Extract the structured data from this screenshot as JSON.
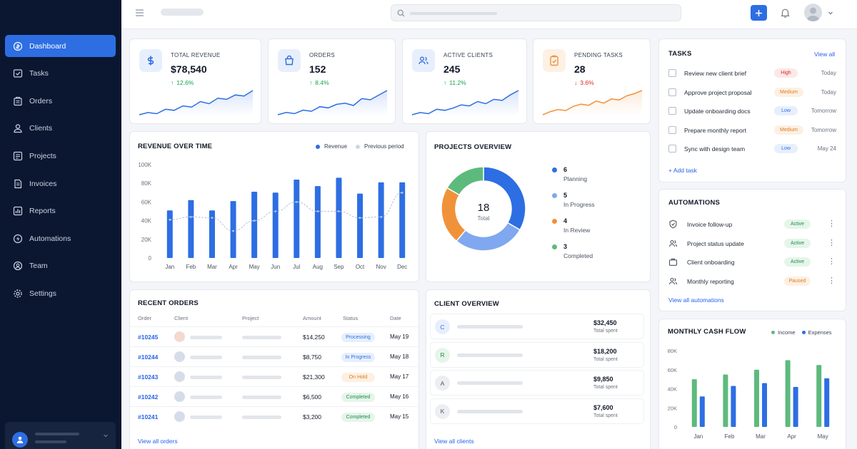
{
  "colors": {
    "accent": "#2d6ee3",
    "sidebar": "#0b1730",
    "success": "#16a34a",
    "danger": "#dc2626",
    "orange": "#f0923a",
    "green": "#5dba7d"
  },
  "sidebar": {
    "items": [
      {
        "label": "Dashboard",
        "icon": "dashboard-icon"
      },
      {
        "label": "Tasks",
        "icon": "tasks-icon"
      },
      {
        "label": "Orders",
        "icon": "orders-icon"
      },
      {
        "label": "Clients",
        "icon": "clients-icon"
      },
      {
        "label": "Projects",
        "icon": "projects-icon"
      },
      {
        "label": "Invoices",
        "icon": "invoices-icon"
      },
      {
        "label": "Reports",
        "icon": "reports-icon"
      },
      {
        "label": "Automations",
        "icon": "automations-icon"
      },
      {
        "label": "Team",
        "icon": "team-icon"
      },
      {
        "label": "Settings",
        "icon": "settings-icon"
      }
    ]
  },
  "kpis": [
    {
      "label": "TOTAL REVENUE",
      "value": "$78,540",
      "delta": "12.6%",
      "direction": "up",
      "icon": "dollar-icon",
      "spark": [
        10,
        12,
        11,
        15,
        14,
        18,
        17,
        22,
        20,
        25,
        24,
        28,
        27,
        32
      ]
    },
    {
      "label": "ORDERS",
      "value": "152",
      "delta": "8.4%",
      "direction": "up",
      "icon": "bag-icon",
      "spark": [
        12,
        14,
        13,
        16,
        15,
        19,
        18,
        21,
        22,
        20,
        26,
        25,
        29,
        33
      ]
    },
    {
      "label": "ACTIVE CLIENTS",
      "value": "245",
      "delta": "11.2%",
      "direction": "up",
      "icon": "users-icon",
      "spark": [
        11,
        13,
        12,
        16,
        15,
        17,
        20,
        19,
        23,
        21,
        25,
        24,
        29,
        33
      ]
    },
    {
      "label": "PENDING TASKS",
      "value": "28",
      "delta": "3.6%",
      "direction": "down",
      "icon": "clipboard-icon",
      "spark": [
        9,
        12,
        14,
        13,
        17,
        19,
        18,
        22,
        20,
        24,
        23,
        27,
        29,
        32
      ]
    }
  ],
  "revenue_chart": {
    "title": "REVENUE OVER TIME",
    "legend": [
      "Revenue",
      "Previous period"
    ]
  },
  "chart_data": [
    {
      "type": "bar",
      "title": "REVENUE OVER TIME",
      "categories": [
        "Jan",
        "Feb",
        "Mar",
        "Apr",
        "May",
        "Jun",
        "Jul",
        "Aug",
        "Sep",
        "Oct",
        "Nov",
        "Dec"
      ],
      "series": [
        {
          "name": "Revenue",
          "values": [
            51000,
            62000,
            51000,
            61000,
            71000,
            70000,
            84000,
            77000,
            86000,
            69000,
            81000,
            81000
          ]
        },
        {
          "name": "Previous period",
          "values": [
            41000,
            44000,
            43000,
            29000,
            40000,
            50000,
            60000,
            50000,
            50000,
            43000,
            44000,
            70000
          ]
        }
      ],
      "yticks": [
        "0",
        "20K",
        "40K",
        "60K",
        "80K",
        "100K"
      ],
      "ylim": [
        0,
        100000
      ],
      "legend_position": "top-right"
    },
    {
      "type": "pie",
      "title": "PROJECTS OVERVIEW",
      "categories": [
        "Planning",
        "In Progress",
        "In Review",
        "Completed"
      ],
      "values": [
        6,
        5,
        4,
        3
      ],
      "center_value": "18",
      "center_label": "Total"
    },
    {
      "type": "bar",
      "title": "MONTHLY CASH FLOW",
      "categories": [
        "Jan",
        "Feb",
        "Mar",
        "Apr",
        "May"
      ],
      "series": [
        {
          "name": "Income",
          "values": [
            50000,
            55000,
            60000,
            70000,
            65000
          ]
        },
        {
          "name": "Expenses",
          "values": [
            32000,
            43000,
            46000,
            42000,
            51000
          ]
        }
      ],
      "yticks": [
        "0",
        "20K",
        "40K",
        "60K",
        "80K"
      ],
      "ylim": [
        0,
        80000
      ],
      "legend_position": "top-right"
    }
  ],
  "projects": {
    "title": "PROJECTS OVERVIEW",
    "legend": [
      {
        "count": "6",
        "label": "Planning",
        "color": "#2d6ee3"
      },
      {
        "count": "5",
        "label": "In Progress",
        "color": "#7fa8f0"
      },
      {
        "count": "4",
        "label": "In Review",
        "color": "#f0923a"
      },
      {
        "count": "3",
        "label": "Completed",
        "color": "#5dba7d"
      }
    ]
  },
  "tasks": {
    "title": "TASKS",
    "view_all": "View all",
    "add_task": "+ Add task",
    "items": [
      {
        "name": "Review new client brief",
        "priority": "High",
        "due": "Today"
      },
      {
        "name": "Approve project proposal",
        "priority": "Medium",
        "due": "Today"
      },
      {
        "name": "Update onboarding docs",
        "priority": "Low",
        "due": "Tomorrow"
      },
      {
        "name": "Prepare monthly report",
        "priority": "Medium",
        "due": "Tomorrow"
      },
      {
        "name": "Sync with design team",
        "priority": "Low",
        "due": "May 24"
      }
    ]
  },
  "automations": {
    "title": "AUTOMATIONS",
    "view_all": "View all automations",
    "items": [
      {
        "name": "Invoice follow-up",
        "status": "Active"
      },
      {
        "name": "Project status update",
        "status": "Active"
      },
      {
        "name": "Client onboarding",
        "status": "Active"
      },
      {
        "name": "Monthly reporting",
        "status": "Paused"
      }
    ]
  },
  "orders": {
    "title": "RECENT ORDERS",
    "columns": [
      "Order",
      "Client",
      "Project",
      "Amount",
      "Status",
      "Date"
    ],
    "rows": [
      {
        "id": "#10245",
        "amount": "$14,250",
        "status": "Processing",
        "date": "May 19"
      },
      {
        "id": "#10244",
        "amount": "$8,750",
        "status": "In Progress",
        "date": "May 18"
      },
      {
        "id": "#10243",
        "amount": "$21,300",
        "status": "On Hold",
        "date": "May 17"
      },
      {
        "id": "#10242",
        "amount": "$6,500",
        "status": "Completed",
        "date": "May 16"
      },
      {
        "id": "#10241",
        "amount": "$3,200",
        "status": "Completed",
        "date": "May 15"
      }
    ],
    "view_all": "View all orders"
  },
  "clients": {
    "title": "CLIENT OVERVIEW",
    "rows": [
      {
        "initial": "C",
        "amount": "$32,450",
        "sub": "Total spent"
      },
      {
        "initial": "R",
        "amount": "$18,200",
        "sub": "Total spent"
      },
      {
        "initial": "A",
        "amount": "$9,850",
        "sub": "Total spent"
      },
      {
        "initial": "K",
        "amount": "$7,600",
        "sub": "Total spent"
      }
    ],
    "view_all": "View all clients"
  },
  "cashflow": {
    "title": "MONTHLY CASH FLOW",
    "legend": [
      "Income",
      "Expenses"
    ]
  }
}
